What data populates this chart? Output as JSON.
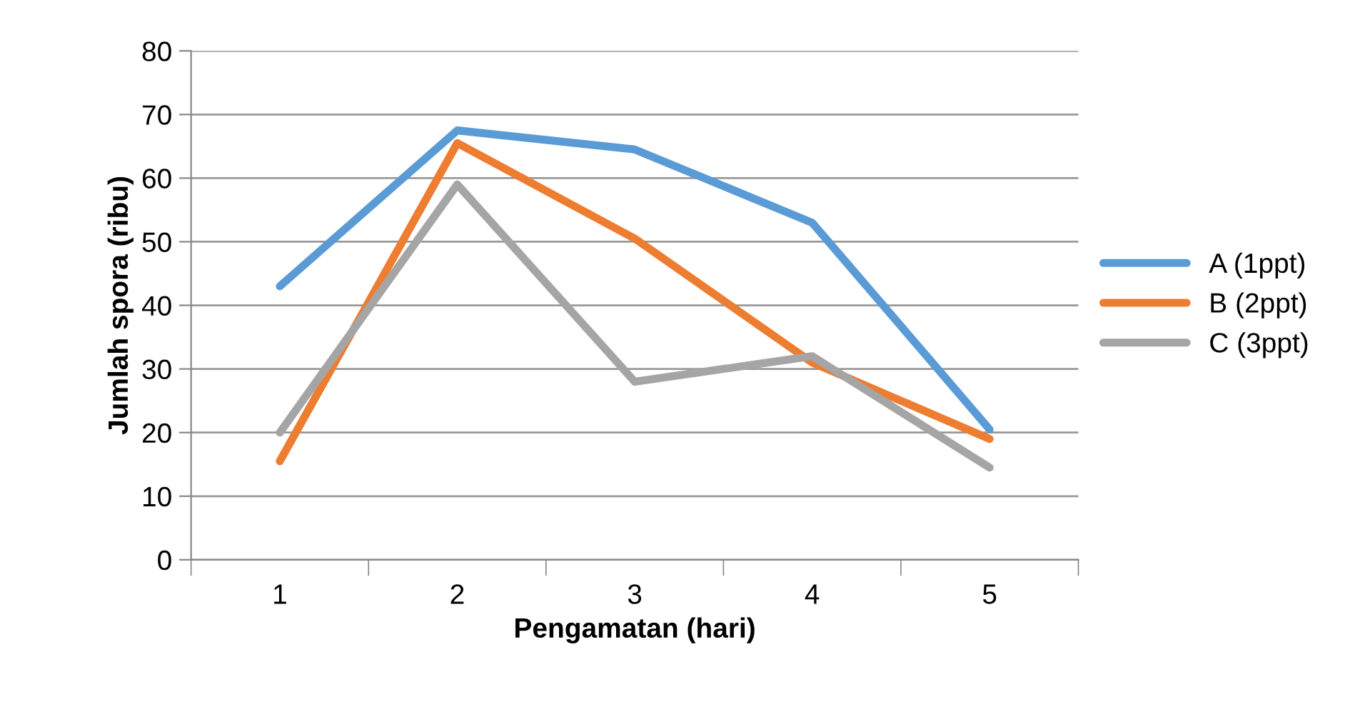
{
  "chart_data": {
    "type": "line",
    "xlabel": "Pengamatan (hari)",
    "ylabel": "Jumlah spora (ribu)",
    "categories": [
      "1",
      "2",
      "3",
      "4",
      "5"
    ],
    "series": [
      {
        "name": "A (1ppt)",
        "color": "#5b9bd5",
        "values": [
          43,
          67.5,
          64.5,
          53,
          20.5
        ]
      },
      {
        "name": "B (2ppt)",
        "color": "#ed7d31",
        "values": [
          15.5,
          65.5,
          50.5,
          31,
          19
        ]
      },
      {
        "name": "C (3ppt)",
        "color": "#a5a5a5",
        "values": [
          20,
          59,
          28,
          32,
          14.5
        ]
      }
    ],
    "ylim": [
      0,
      80
    ],
    "yticks": [
      0,
      10,
      20,
      30,
      40,
      50,
      60,
      70,
      80
    ],
    "grid": "y",
    "legend": "right",
    "marker": "none",
    "line_style": "solid"
  }
}
